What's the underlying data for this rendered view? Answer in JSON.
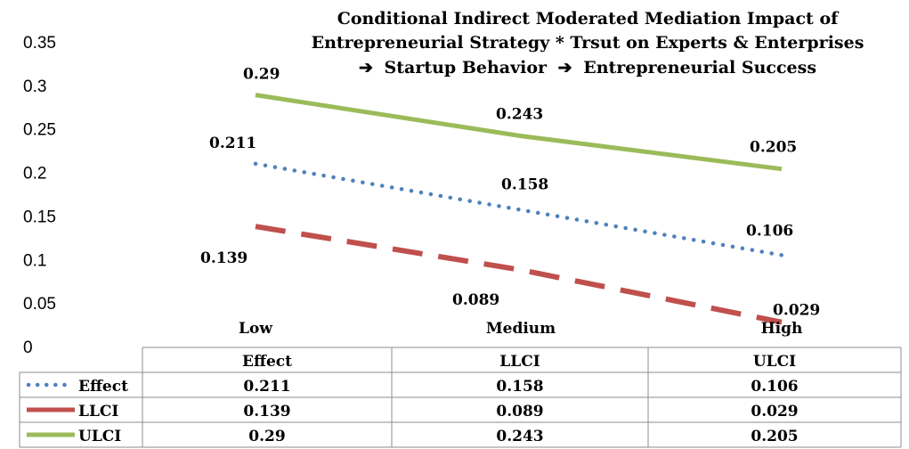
{
  "chart_data": {
    "type": "line",
    "title_lines": [
      "Conditional Indirect Moderated Mediation Impact of",
      "Entrepreneurial Strategy * Trsut on Experts & Enterprises",
      "Startup Behavior",
      "Entrepreneurial Success"
    ],
    "title_arrow": "➔",
    "categories": [
      "Low",
      "Medium",
      "High"
    ],
    "ylim": [
      0,
      0.35
    ],
    "yticks": [
      0,
      0.05,
      0.1,
      0.15,
      0.2,
      0.25,
      0.3,
      0.35
    ],
    "ytick_labels": [
      "0",
      "0.05",
      "0.1",
      "0.15",
      "0.2",
      "0.25",
      "0.3",
      "0.35"
    ],
    "series": [
      {
        "name": "Effect",
        "values": [
          0.211,
          0.158,
          0.106
        ],
        "labels": [
          "0.211",
          "0.158",
          "0.106"
        ],
        "color": "#4f81bd",
        "style": "dotted"
      },
      {
        "name": "LLCI",
        "values": [
          0.139,
          0.089,
          0.029
        ],
        "labels": [
          "0.139",
          "0.089",
          "0.029"
        ],
        "color": "#c0504d",
        "style": "dashed"
      },
      {
        "name": "ULCI",
        "values": [
          0.29,
          0.243,
          0.205
        ],
        "labels": [
          "0.29",
          "0.243",
          "0.205"
        ],
        "color": "#9bbb59",
        "style": "solid"
      }
    ],
    "table": {
      "headers": [
        "Effect",
        "LLCI",
        "ULCI"
      ],
      "rows": [
        {
          "name": "Effect",
          "cells": [
            "0.211",
            "0.158",
            "0.106"
          ]
        },
        {
          "name": "LLCI",
          "cells": [
            "0.139",
            "0.089",
            "0.029"
          ]
        },
        {
          "name": "ULCI",
          "cells": [
            "0.29",
            "0.243",
            "0.205"
          ]
        }
      ]
    },
    "grid": true,
    "legend": "table-left"
  }
}
